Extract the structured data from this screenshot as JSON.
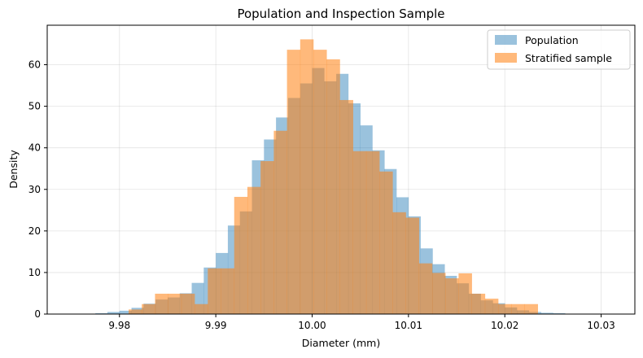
{
  "chart_data": {
    "type": "histogram",
    "title": "Population and Inspection Sample",
    "xlabel": "Diameter (mm)",
    "ylabel": "Density",
    "xlim": [
      9.9725,
      10.0335
    ],
    "ylim": [
      0,
      69.5
    ],
    "xticks": [
      9.98,
      9.99,
      10.0,
      10.01,
      10.02,
      10.03
    ],
    "xtick_labels": [
      "9.98",
      "9.99",
      "10.00",
      "10.01",
      "10.02",
      "10.03"
    ],
    "yticks": [
      0,
      10,
      20,
      30,
      40,
      50,
      60
    ],
    "grid": true,
    "legend_position": "top-right",
    "series": [
      {
        "name": "Population",
        "color": "#1f77b4",
        "opacity": 0.45,
        "bin_width": 0.00125,
        "bins": [
          [
            9.9775,
            0.2
          ],
          [
            9.97875,
            0.5
          ],
          [
            9.98,
            0.8
          ],
          [
            9.98125,
            1.5
          ],
          [
            9.9825,
            2.5
          ],
          [
            9.98375,
            3.5
          ],
          [
            9.985,
            4.0
          ],
          [
            9.98625,
            5.0
          ],
          [
            9.9875,
            7.5
          ],
          [
            9.98875,
            11.2
          ],
          [
            9.99,
            14.7
          ],
          [
            9.99125,
            21.3
          ],
          [
            9.9925,
            24.7
          ],
          [
            9.99375,
            37.0
          ],
          [
            9.995,
            42.0
          ],
          [
            9.99625,
            47.3
          ],
          [
            9.9975,
            52.0
          ],
          [
            9.99875,
            55.5
          ],
          [
            10.0,
            59.2
          ],
          [
            10.00125,
            56.0
          ],
          [
            10.0025,
            57.8
          ],
          [
            10.00375,
            50.7
          ],
          [
            10.005,
            45.4
          ],
          [
            10.00625,
            39.4
          ],
          [
            10.0075,
            34.9
          ],
          [
            10.00875,
            28.1
          ],
          [
            10.01,
            23.5
          ],
          [
            10.01125,
            15.8
          ],
          [
            10.0125,
            12.0
          ],
          [
            10.01375,
            9.2
          ],
          [
            10.015,
            7.4
          ],
          [
            10.01625,
            4.9
          ],
          [
            10.0175,
            3.3
          ],
          [
            10.01875,
            2.6
          ],
          [
            10.02,
            1.6
          ],
          [
            10.02125,
            0.9
          ],
          [
            10.0225,
            0.5
          ],
          [
            10.02375,
            0.3
          ],
          [
            10.025,
            0.2
          ]
        ]
      },
      {
        "name": "Stratified sample",
        "color": "#ff7f0e",
        "opacity": 0.55,
        "bin_width": 0.00137,
        "bins": [
          [
            9.98095,
            1.1
          ],
          [
            9.98232,
            2.4
          ],
          [
            9.98369,
            4.9
          ],
          [
            9.98506,
            4.9
          ],
          [
            9.98643,
            4.9
          ],
          [
            9.9878,
            2.4
          ],
          [
            9.98917,
            11.0
          ],
          [
            9.99054,
            11.0
          ],
          [
            9.99191,
            28.2
          ],
          [
            9.99328,
            30.6
          ],
          [
            9.99465,
            36.8
          ],
          [
            9.99602,
            44.1
          ],
          [
            9.99739,
            63.6
          ],
          [
            9.99876,
            66.1
          ],
          [
            10.00013,
            63.6
          ],
          [
            10.0015,
            61.3
          ],
          [
            10.00287,
            51.5
          ],
          [
            10.00424,
            39.2
          ],
          [
            10.00561,
            39.2
          ],
          [
            10.00698,
            34.3
          ],
          [
            10.00835,
            24.5
          ],
          [
            10.00972,
            23.2
          ],
          [
            10.01109,
            12.2
          ],
          [
            10.01246,
            9.9
          ],
          [
            10.01383,
            8.6
          ],
          [
            10.0152,
            9.8
          ],
          [
            10.01657,
            4.9
          ],
          [
            10.01794,
            3.7
          ],
          [
            10.01931,
            2.4
          ],
          [
            10.02068,
            2.4
          ],
          [
            10.02205,
            2.4
          ]
        ]
      }
    ]
  }
}
